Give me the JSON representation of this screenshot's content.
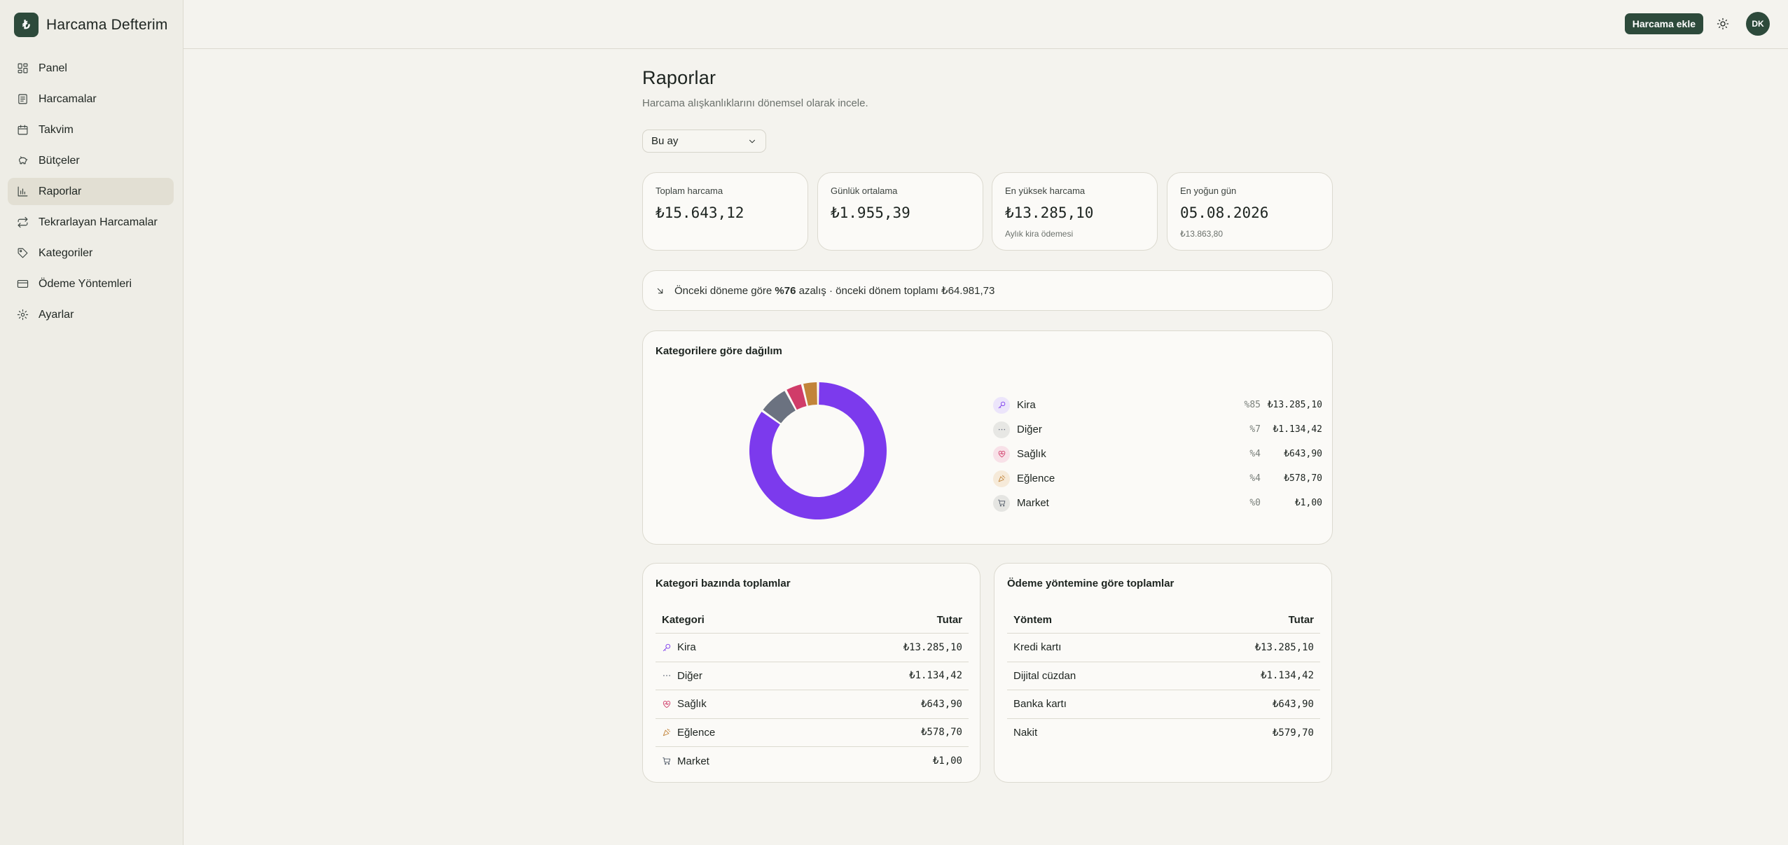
{
  "app": {
    "name": "Harcama Defterim",
    "logo_glyph": "₺"
  },
  "sidebar": {
    "items": [
      {
        "label": "Panel",
        "icon": "dashboard-icon"
      },
      {
        "label": "Harcamalar",
        "icon": "receipt-icon"
      },
      {
        "label": "Takvim",
        "icon": "calendar-icon"
      },
      {
        "label": "Bütçeler",
        "icon": "piggy-bank-icon"
      },
      {
        "label": "Raporlar",
        "icon": "bar-chart-icon",
        "active": true
      },
      {
        "label": "Tekrarlayan Harcamalar",
        "icon": "repeat-icon"
      },
      {
        "label": "Kategoriler",
        "icon": "tag-icon"
      },
      {
        "label": "Ödeme Yöntemleri",
        "icon": "credit-card-icon"
      },
      {
        "label": "Ayarlar",
        "icon": "gear-icon"
      }
    ]
  },
  "topbar": {
    "add_label": "Harcama ekle",
    "avatar_initials": "DK"
  },
  "page": {
    "title": "Raporlar",
    "subtitle": "Harcama alışkanlıklarını dönemsel olarak incele.",
    "period": "Bu ay"
  },
  "stats": [
    {
      "label": "Toplam harcama",
      "value": "₺15.643,12",
      "note": ""
    },
    {
      "label": "Günlük ortalama",
      "value": "₺1.955,39",
      "note": ""
    },
    {
      "label": "En yüksek harcama",
      "value": "₺13.285,10",
      "note": "Aylık kira ödemesi"
    },
    {
      "label": "En yoğun gün",
      "value": "05.08.2026",
      "note": "₺13.863,80"
    }
  ],
  "comparison": {
    "prefix": "Önceki döneme göre",
    "percent": "%76",
    "suffix": "azalış · önceki dönem toplamı ₺64.981,73"
  },
  "distribution": {
    "title": "Kategorilere göre dağılım",
    "items": [
      {
        "name": "Kira",
        "pct": "%85",
        "amount": "₺13.285,10",
        "icon": "key-icon",
        "color": "#7c3aed",
        "bg": "#ece5fb"
      },
      {
        "name": "Diğer",
        "pct": "%7",
        "amount": "₺1.134,42",
        "icon": "dots-icon",
        "color": "#6b7280",
        "bg": "#e7e7e4"
      },
      {
        "name": "Sağlık",
        "pct": "%4",
        "amount": "₺643,90",
        "icon": "heart-pulse-icon",
        "color": "#d03c69",
        "bg": "#f8e1e8"
      },
      {
        "name": "Eğlence",
        "pct": "%4",
        "amount": "₺578,70",
        "icon": "party-icon",
        "color": "#c2843a",
        "bg": "#f6ead9"
      },
      {
        "name": "Market",
        "pct": "%0",
        "amount": "₺1,00",
        "icon": "cart-icon",
        "color": "#4b5563",
        "bg": "#e5e5e2"
      }
    ]
  },
  "chart_data": {
    "type": "pie",
    "categories": [
      "Kira",
      "Diğer",
      "Sağlık",
      "Eğlence",
      "Market"
    ],
    "values": [
      13285.1,
      1134.42,
      643.9,
      578.7,
      1.0
    ],
    "colors": [
      "#7c3aed",
      "#6b7280",
      "#d03c69",
      "#c2843a",
      "#4b5563"
    ],
    "title": "Kategorilere göre dağılım",
    "donut": true
  },
  "category_totals": {
    "title": "Kategori bazında toplamlar",
    "col_name": "Kategori",
    "col_amount": "Tutar",
    "rows": [
      {
        "name": "Kira",
        "amount": "₺13.285,10",
        "icon": "key-icon",
        "color": "#7c3aed"
      },
      {
        "name": "Diğer",
        "amount": "₺1.134,42",
        "icon": "dots-icon",
        "color": "#6b7280"
      },
      {
        "name": "Sağlık",
        "amount": "₺643,90",
        "icon": "heart-pulse-icon",
        "color": "#d03c69"
      },
      {
        "name": "Eğlence",
        "amount": "₺578,70",
        "icon": "party-icon",
        "color": "#c2843a"
      },
      {
        "name": "Market",
        "amount": "₺1,00",
        "icon": "cart-icon",
        "color": "#4b5563"
      }
    ]
  },
  "method_totals": {
    "title": "Ödeme yöntemine göre toplamlar",
    "col_name": "Yöntem",
    "col_amount": "Tutar",
    "rows": [
      {
        "name": "Kredi kartı",
        "amount": "₺13.285,10"
      },
      {
        "name": "Dijital cüzdan",
        "amount": "₺1.134,42"
      },
      {
        "name": "Banka kartı",
        "amount": "₺643,90"
      },
      {
        "name": "Nakit",
        "amount": "₺579,70"
      }
    ]
  }
}
